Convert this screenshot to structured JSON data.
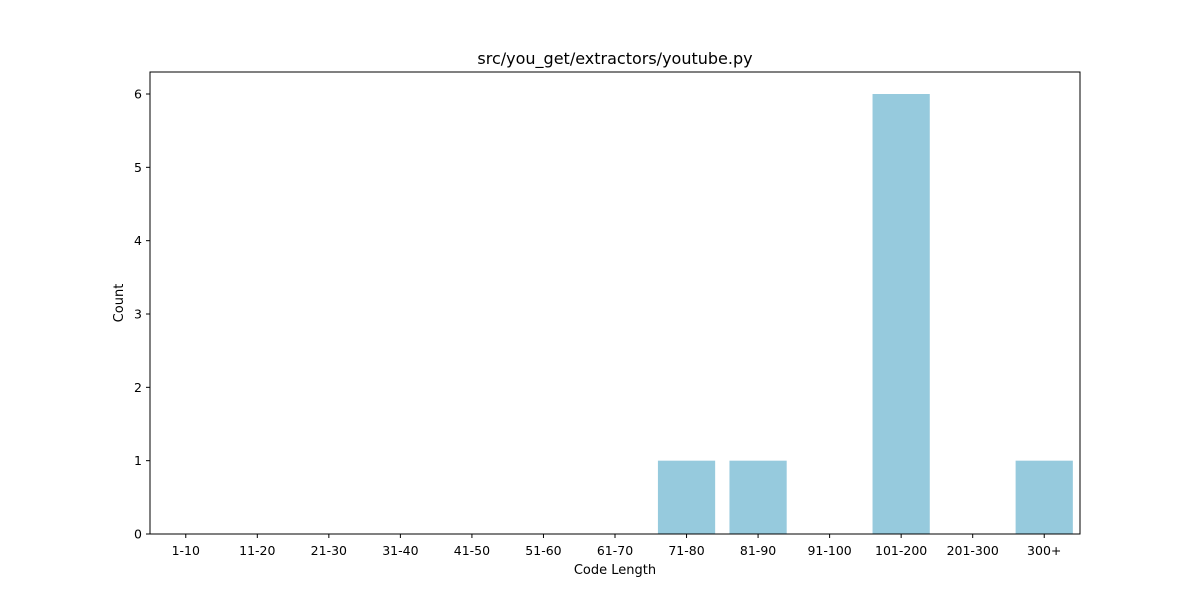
{
  "colors": {
    "bar": "#96cadd",
    "axis": "#000000",
    "background": "#ffffff"
  },
  "chart_data": {
    "type": "bar",
    "title": "src/you_get/extractors/youtube.py",
    "xlabel": "Code Length",
    "ylabel": "Count",
    "categories": [
      "1-10",
      "11-20",
      "21-30",
      "31-40",
      "41-50",
      "51-60",
      "61-70",
      "71-80",
      "81-90",
      "91-100",
      "101-200",
      "201-300",
      "300+"
    ],
    "values": [
      0,
      0,
      0,
      0,
      0,
      0,
      0,
      1,
      1,
      0,
      6,
      0,
      1
    ],
    "ylim": [
      0,
      6.3
    ],
    "yticks": [
      0,
      1,
      2,
      3,
      4,
      5,
      6
    ],
    "grid": false,
    "legend": "none"
  }
}
